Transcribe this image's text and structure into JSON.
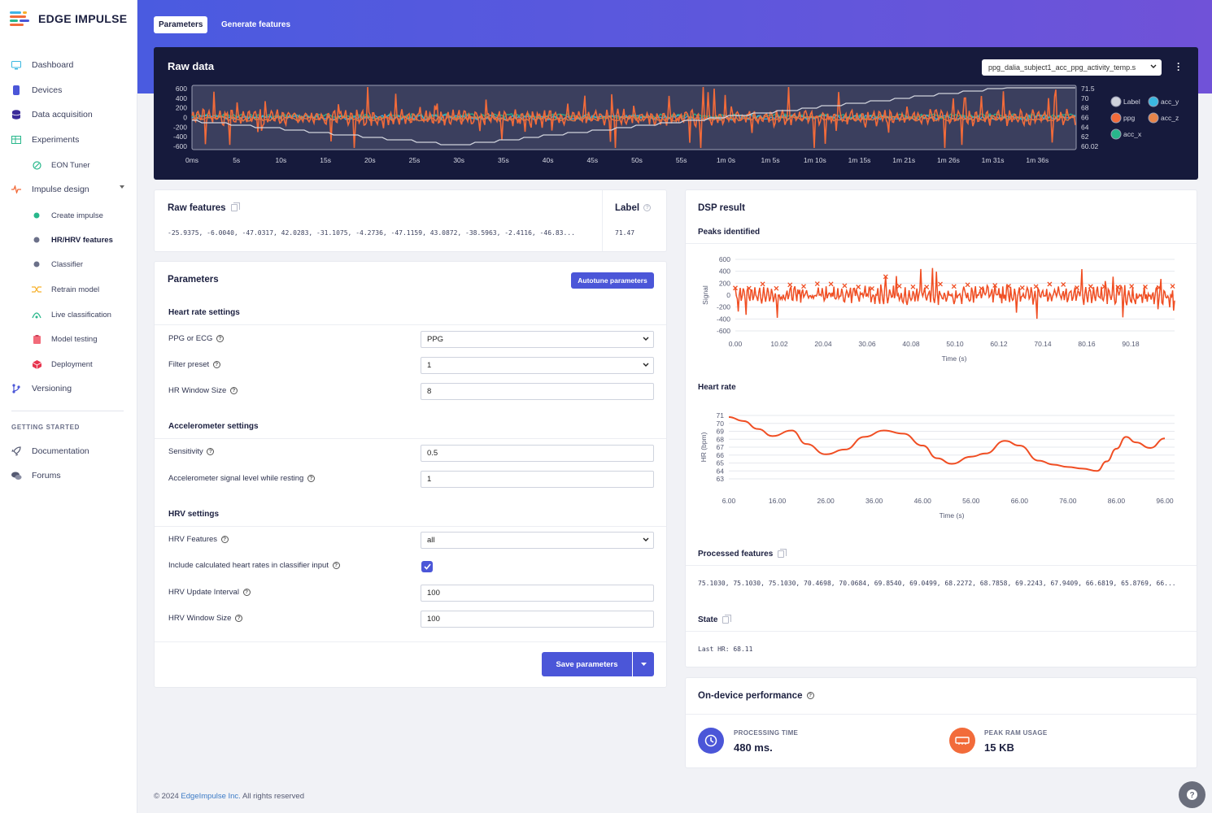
{
  "brand": {
    "name": "EDGE IMPULSE"
  },
  "sidebar": {
    "items": [
      {
        "label": "Dashboard",
        "icon": "monitor-icon"
      },
      {
        "label": "Devices",
        "icon": "device-icon"
      },
      {
        "label": "Data acquisition",
        "icon": "database-icon"
      },
      {
        "label": "Experiments",
        "icon": "table-icon"
      },
      {
        "label": "EON Tuner",
        "icon": "tuner-icon"
      },
      {
        "label": "Impulse design",
        "icon": "pulse-icon"
      },
      {
        "label": "Create impulse",
        "icon": "dot-icon"
      },
      {
        "label": "HR/HRV features",
        "icon": "dot-icon"
      },
      {
        "label": "Classifier",
        "icon": "dot-icon"
      },
      {
        "label": "Retrain model",
        "icon": "shuffle-icon"
      },
      {
        "label": "Live classification",
        "icon": "live-icon"
      },
      {
        "label": "Model testing",
        "icon": "clipboard-icon"
      },
      {
        "label": "Deployment",
        "icon": "cube-icon"
      },
      {
        "label": "Versioning",
        "icon": "branch-icon"
      }
    ],
    "getting_started_title": "GETTING STARTED",
    "getting_started": [
      {
        "label": "Documentation",
        "icon": "rocket-icon"
      },
      {
        "label": "Forums",
        "icon": "chat-icon"
      }
    ]
  },
  "tabs": {
    "parameters": "Parameters",
    "generate": "Generate features"
  },
  "raw_data": {
    "title": "Raw data",
    "sample": "ppg_dalia_subject1_acc_ppg_activity_temp.s",
    "left_ticks": [
      "600",
      "400",
      "200",
      "0",
      "-200",
      "-400",
      "-600"
    ],
    "right_ticks": [
      "71.5",
      "70",
      "68",
      "66",
      "64",
      "62",
      "60.02"
    ],
    "time_ticks": [
      "0ms",
      "5s",
      "10s",
      "15s",
      "20s",
      "25s",
      "30s",
      "35s",
      "40s",
      "45s",
      "50s",
      "55s",
      "1m 0s",
      "1m 5s",
      "1m 10s",
      "1m 15s",
      "1m 21s",
      "1m 26s",
      "1m 31s",
      "1m 36s"
    ],
    "legend": [
      "Label",
      "acc_y",
      "ppg",
      "acc_z",
      "acc_x"
    ],
    "colors": {
      "ppg": "#f26b3a",
      "acc_x": "#28b78b",
      "acc_y": "#3ab7e0",
      "acc_z": "#e6844a",
      "label": "#cfd2dc"
    }
  },
  "raw_features": {
    "title": "Raw features",
    "values": "-25.9375, -6.0040, -47.0317, 42.0283, -31.1075, -4.2736, -47.1159, 43.0872, -38.5963, -2.4116, -46.83..."
  },
  "label_box": {
    "title": "Label",
    "value": "71.47"
  },
  "parameters": {
    "title": "Parameters",
    "autotune": "Autotune parameters",
    "heart_rate_title": "Heart rate settings",
    "ppg_or_ecg": {
      "label": "PPG or ECG",
      "value": "PPG"
    },
    "filter_preset": {
      "label": "Filter preset",
      "value": "1"
    },
    "hr_window": {
      "label": "HR Window Size",
      "value": "8"
    },
    "accel_title": "Accelerometer settings",
    "sensitivity": {
      "label": "Sensitivity",
      "value": "0.5"
    },
    "accel_level": {
      "label": "Accelerometer signal level while resting",
      "value": "1"
    },
    "hrv_title": "HRV settings",
    "hrv_features": {
      "label": "HRV Features",
      "value": "all"
    },
    "include_hr": {
      "label": "Include calculated heart rates in classifier input",
      "checked": true
    },
    "hrv_update": {
      "label": "HRV Update Interval",
      "value": "100"
    },
    "hrv_window": {
      "label": "HRV Window Size",
      "value": "100"
    },
    "save": "Save parameters"
  },
  "dsp": {
    "title": "DSP result",
    "peaks_title": "Peaks identified",
    "peaks_ylabel": "Signal",
    "peaks_xlabel": "Time (s)",
    "peaks_yticks": [
      "600",
      "400",
      "200",
      "0",
      "-200",
      "-400",
      "-600"
    ],
    "peaks_xticks": [
      "0.00",
      "10.02",
      "20.04",
      "30.06",
      "40.08",
      "50.10",
      "60.12",
      "70.14",
      "80.16",
      "90.18"
    ],
    "hr_title": "Heart rate",
    "hr_ylabel": "HR (bpm)",
    "hr_xlabel": "Time (s)",
    "hr_yticks": [
      "71",
      "70",
      "69",
      "68",
      "67",
      "66",
      "65",
      "64",
      "63"
    ],
    "hr_xticks": [
      "6.00",
      "16.00",
      "26.00",
      "36.00",
      "46.00",
      "56.00",
      "66.00",
      "76.00",
      "86.00",
      "96.00"
    ],
    "processed_title": "Processed features",
    "processed_values": "75.1030, 75.1030, 75.1030, 70.4698, 70.0684, 69.8540, 69.0499, 68.2272, 68.7858, 69.2243, 67.9409, 66.6819, 65.8769, 66...",
    "state_title": "State",
    "state_value": "Last HR: 68.11"
  },
  "chart_data": [
    {
      "type": "line",
      "title": "Heart rate",
      "xlabel": "Time (s)",
      "ylabel": "HR (bpm)",
      "xlim": [
        6,
        96
      ],
      "ylim": [
        63,
        71
      ],
      "x": [
        6,
        9,
        12,
        15,
        19,
        22,
        26,
        30,
        34,
        38,
        42,
        46,
        49,
        52,
        56,
        59,
        63,
        66,
        70,
        73,
        76,
        79,
        82,
        84,
        86,
        88,
        90,
        93,
        96
      ],
      "y": [
        70.8,
        70.3,
        69.3,
        68.4,
        69.1,
        67.4,
        66.1,
        66.7,
        68.3,
        69.1,
        68.7,
        67.2,
        65.6,
        64.9,
        65.8,
        66.2,
        67.8,
        67.2,
        65.3,
        64.8,
        64.5,
        64.3,
        64.0,
        65.2,
        66.8,
        68.3,
        67.6,
        66.9,
        68.1
      ]
    }
  ],
  "perf": {
    "title": "On-device performance",
    "processing_label": "PROCESSING TIME",
    "processing_value": "480 ms.",
    "ram_label": "PEAK RAM USAGE",
    "ram_value": "15 KB"
  },
  "footer": {
    "prefix": "© 2024 ",
    "link": "EdgeImpulse Inc.",
    "suffix": " All rights reserved"
  }
}
